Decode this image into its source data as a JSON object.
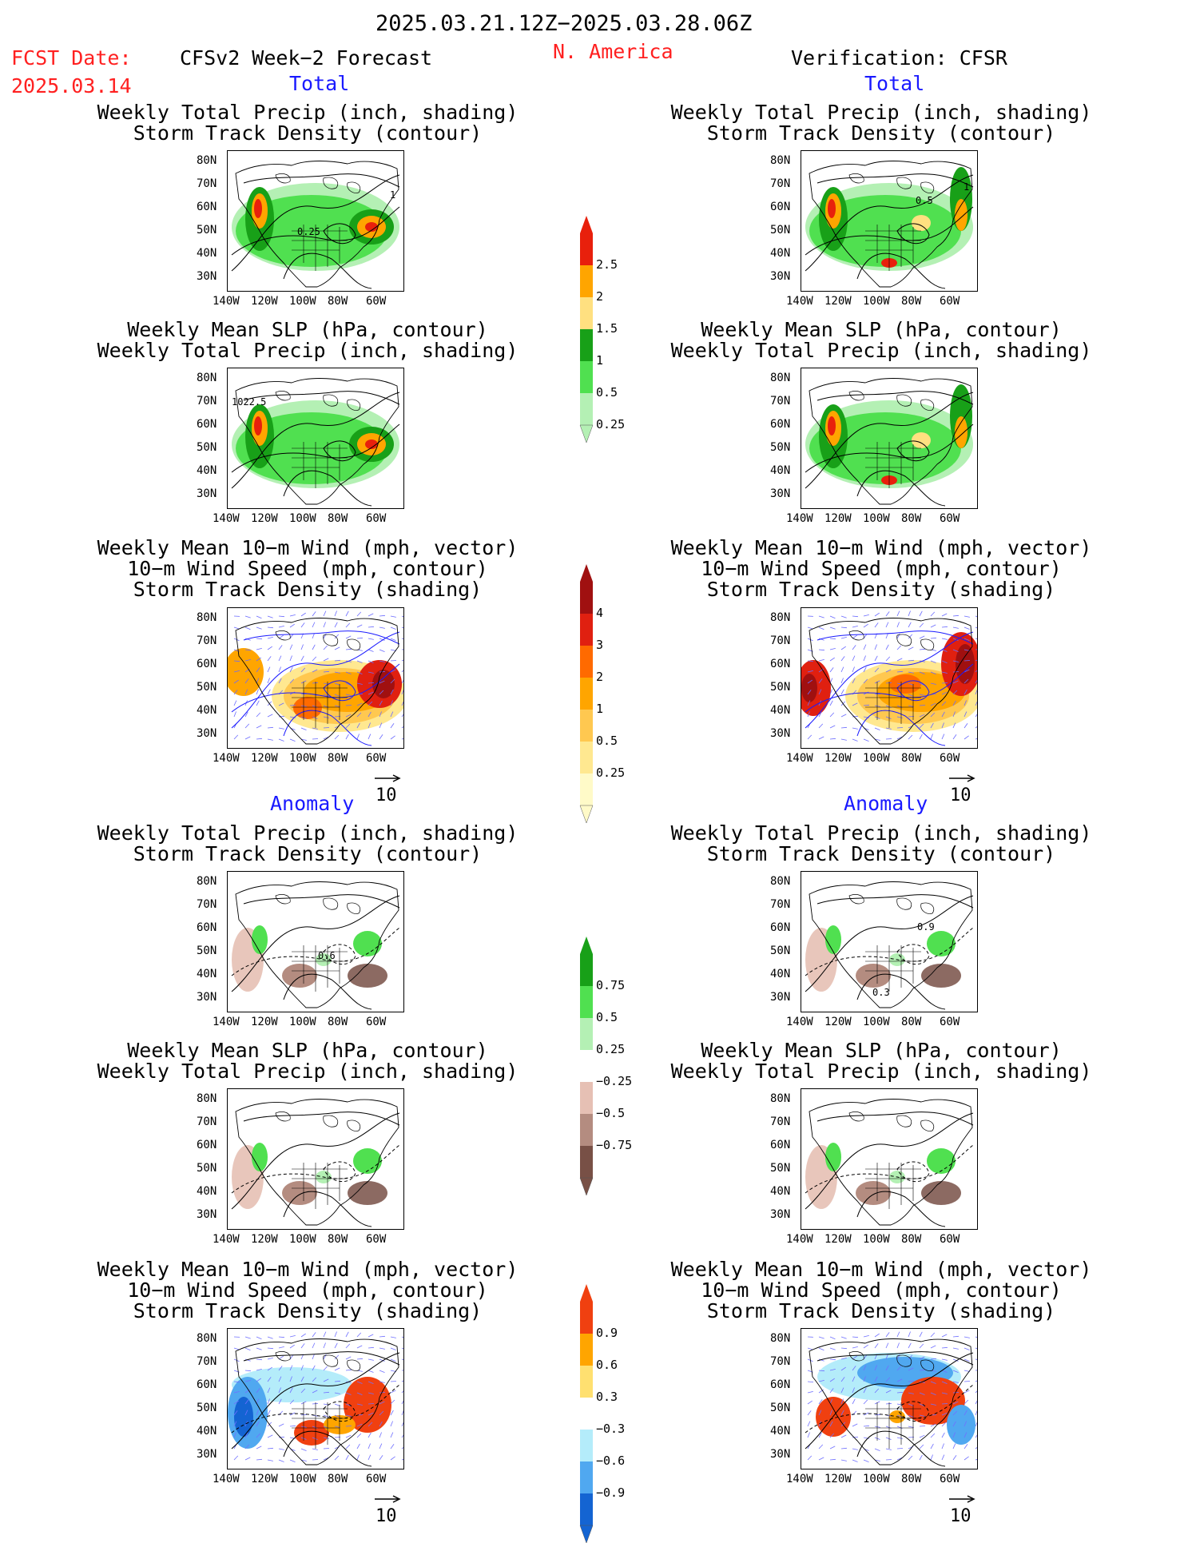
{
  "header": {
    "date_range": "2025.03.21.12Z−2025.03.28.06Z",
    "fcst_label": "FCST Date:",
    "fcst_date": "2025.03.14",
    "model_title": "CFSv2 Week−2 Forecast",
    "region": "N. America",
    "verification": "Verification: CFSR"
  },
  "sections": {
    "total": "Total",
    "anomaly": "Anomaly"
  },
  "panel_titles": {
    "precip_storm": [
      "Weekly Total Precip (inch, shading)",
      "Storm Track Density (contour)"
    ],
    "slp_precip": [
      "Weekly Mean SLP (hPa, contour)",
      "Weekly Total Precip (inch, shading)"
    ],
    "wind_storm": [
      "Weekly Mean 10−m Wind (mph, vector)",
      "10−m Wind Speed (mph, contour)",
      "Storm Track Density (shading)"
    ]
  },
  "axes": {
    "lat": [
      "80N",
      "70N",
      "60N",
      "50N",
      "40N",
      "30N"
    ],
    "lon": [
      "140W",
      "120W",
      "100W",
      "80W",
      "60W"
    ]
  },
  "contour_labels": {
    "storm_025": "0.25",
    "storm_1": "1",
    "storm_05": "0.5",
    "slp_1022": "1022.5",
    "storm_anom_06": "0.6",
    "storm_anom_09": "0.9",
    "storm_anom_03": "0.3"
  },
  "vector_ref": "10",
  "colorbars": {
    "precip_total": {
      "labels": [
        "2.5",
        "2",
        "1.5",
        "1",
        "0.5",
        "0.25"
      ],
      "colors": [
        "#e8200c",
        "#ffa500",
        "#ffe080",
        "#18a018",
        "#50e050",
        "#b4f0b4"
      ]
    },
    "storm_total": {
      "labels": [
        "4",
        "3",
        "2",
        "1",
        "0.5",
        "0.25"
      ],
      "colors": [
        "#a01010",
        "#e02010",
        "#ff6a00",
        "#ffa500",
        "#ffc850",
        "#ffe890",
        "#fffac8"
      ]
    },
    "precip_anom": {
      "labels": [
        "0.75",
        "0.5",
        "0.25",
        "−0.25",
        "−0.5",
        "−0.75"
      ],
      "colors": [
        "#18a018",
        "#50e050",
        "#b4f0b4",
        "#ffffff",
        "#e6c0b4",
        "#b48c80",
        "#785046"
      ]
    },
    "storm_anom": {
      "labels": [
        "0.9",
        "0.6",
        "0.3",
        "−0.3",
        "−0.6",
        "−0.9"
      ],
      "colors": [
        "#f04010",
        "#ffa500",
        "#ffe070",
        "#ffffff",
        "#b4ecfa",
        "#50a8f0",
        "#1464d2"
      ]
    }
  }
}
